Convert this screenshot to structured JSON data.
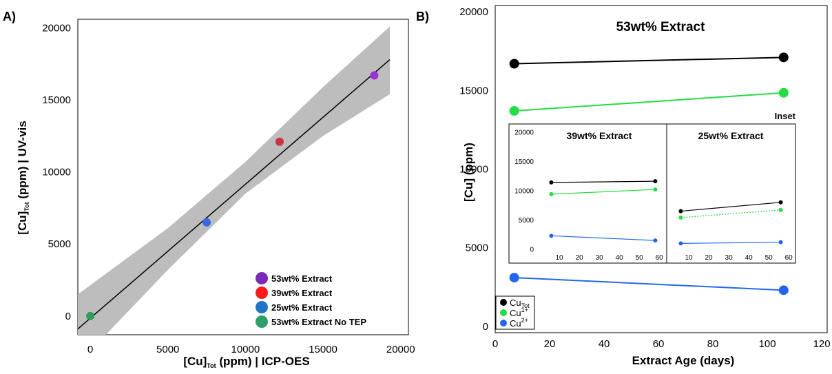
{
  "panel_a_label": "A)",
  "panel_b_label": "B)",
  "colors": {
    "cu_tot": "#000000",
    "cu1": "#22dd44",
    "cu2": "#2266ee",
    "band": "#bdbdbd"
  },
  "chart_data": [
    {
      "type": "scatter",
      "xlabel": {
        "main": "[Cu]",
        "sub": "Tot",
        "rest": " (ppm) | ICP-OES"
      },
      "ylabel": {
        "main": "[Cu]",
        "sub": "Tot",
        "rest": " (ppm) | UV-vis"
      },
      "xlim": [
        -800,
        20500
      ],
      "ylim": [
        -1300,
        20600
      ],
      "xticks": [
        "0",
        "5000",
        "10000",
        "15000",
        "20000"
      ],
      "yticks": [
        "0",
        "5000",
        "10000",
        "15000",
        "20000"
      ],
      "points": [
        {
          "name": "53wt% Extract",
          "x": 18300,
          "y": 16700,
          "color": "#9b30d9"
        },
        {
          "name": "39wt% Extract",
          "x": 12200,
          "y": 12100,
          "color": "#cc3340"
        },
        {
          "name": "25wt% Extract",
          "x": 7500,
          "y": 6500,
          "color": "#3a66e6"
        },
        {
          "name": "53wt% Extract No TEP",
          "x": 0,
          "y": 0,
          "color": "#2e9e5b"
        }
      ],
      "fit_line": {
        "x": [
          -800,
          19300
        ],
        "y": [
          -900,
          17800
        ]
      },
      "band_upper": {
        "x": [
          -800,
          5000,
          10000,
          15000,
          19300
        ],
        "y": [
          1500,
          6100,
          10700,
          15900,
          20100
        ]
      },
      "band_lower": {
        "x": [
          1000,
          5000,
          10000,
          15000,
          19300
        ],
        "y": [
          -1300,
          3200,
          8500,
          12500,
          15400
        ]
      },
      "legend": [
        {
          "label": "53wt% Extract",
          "color": "#7a2ab8"
        },
        {
          "label": "39wt% Extract",
          "color": "#ff1a1a"
        },
        {
          "label": "25wt% Extract",
          "color": "#1f73c8"
        },
        {
          "label": "53wt% Extract No TEP",
          "color": "#2e9e6f"
        }
      ],
      "legend_placement": "bottom-right"
    },
    {
      "type": "line",
      "title": "53wt% Extract",
      "xlabel": "Extract Age (days)",
      "ylabel": "[Cu] (ppm)",
      "xlim": [
        0,
        122
      ],
      "ylim": [
        -400,
        20400
      ],
      "xticks": [
        "0",
        "20",
        "40",
        "60",
        "80",
        "100",
        "120"
      ],
      "yticks": [
        "0",
        "5000",
        "10000",
        "15000",
        "20000"
      ],
      "series": [
        {
          "name": "Cu_Tot",
          "x": [
            7,
            106
          ],
          "y": [
            16700,
            17100
          ]
        },
        {
          "name": "Cu1+",
          "x": [
            7,
            106
          ],
          "y": [
            13700,
            14850
          ]
        },
        {
          "name": "Cu2+",
          "x": [
            7,
            106
          ],
          "y": [
            3100,
            2300
          ]
        }
      ],
      "legend": [
        {
          "main": "Cu",
          "sup": "",
          "sub": "Tot"
        },
        {
          "main": "Cu",
          "sup": "1+",
          "sub": ""
        },
        {
          "main": "Cu",
          "sup": "2+",
          "sub": ""
        }
      ],
      "legend_placement": "bottom-left",
      "inset_label": "Inset"
    },
    {
      "type": "line",
      "title": "39wt%  Extract",
      "xlim": [
        0,
        62
      ],
      "ylim": [
        -500,
        21000
      ],
      "xticks": [
        "10",
        "20",
        "30",
        "40",
        "50",
        "60"
      ],
      "yticks": [
        "0",
        "5000",
        "10000",
        "15000",
        "20000"
      ],
      "series": [
        {
          "name": "Cu_Tot",
          "x": [
            6,
            58
          ],
          "y": [
            11500,
            11700
          ]
        },
        {
          "name": "Cu1+",
          "x": [
            6,
            58
          ],
          "y": [
            9500,
            10300
          ]
        },
        {
          "name": "Cu2+",
          "x": [
            6,
            58
          ],
          "y": [
            2400,
            1600
          ]
        }
      ]
    },
    {
      "type": "line",
      "title": "25wt%  Extract",
      "xlim": [
        0,
        62
      ],
      "ylim": [
        -500,
        21000
      ],
      "xticks": [
        "10",
        "20",
        "30",
        "40",
        "50",
        "60"
      ],
      "series": [
        {
          "name": "Cu_Tot",
          "x": [
            6,
            56
          ],
          "y": [
            6600,
            8100
          ]
        },
        {
          "name": "Cu1+",
          "x": [
            6,
            56
          ],
          "y": [
            5500,
            6800
          ],
          "dashed": true
        },
        {
          "name": "Cu2+",
          "x": [
            6,
            56
          ],
          "y": [
            1100,
            1300
          ]
        }
      ]
    }
  ]
}
